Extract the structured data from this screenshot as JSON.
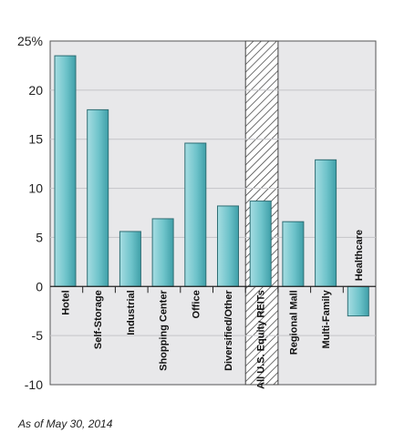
{
  "chart_data": {
    "type": "bar",
    "categories": [
      "Hotel",
      "Self-Storage",
      "Industrial",
      "Shopping Center",
      "Office",
      "Diversified/Other",
      "All U.S. Equity REITs",
      "Regional Mall",
      "Multi-Family",
      "Healthcare"
    ],
    "values": [
      23.5,
      18.0,
      5.6,
      6.9,
      14.6,
      8.2,
      8.7,
      6.6,
      12.9,
      -3.0
    ],
    "highlight_category": "All U.S. Equity REITs",
    "ylim": [
      -10,
      25
    ],
    "yticks": [
      -10,
      -5,
      0,
      5,
      10,
      15,
      20,
      25
    ],
    "ytick_labels": [
      "-10",
      "-5",
      "0",
      "5",
      "10",
      "15",
      "20",
      "25%"
    ],
    "grid": true,
    "bar_color": "#5fbcc4",
    "plot_background": "#e8e8ea"
  },
  "note": "As of May 30, 2014"
}
